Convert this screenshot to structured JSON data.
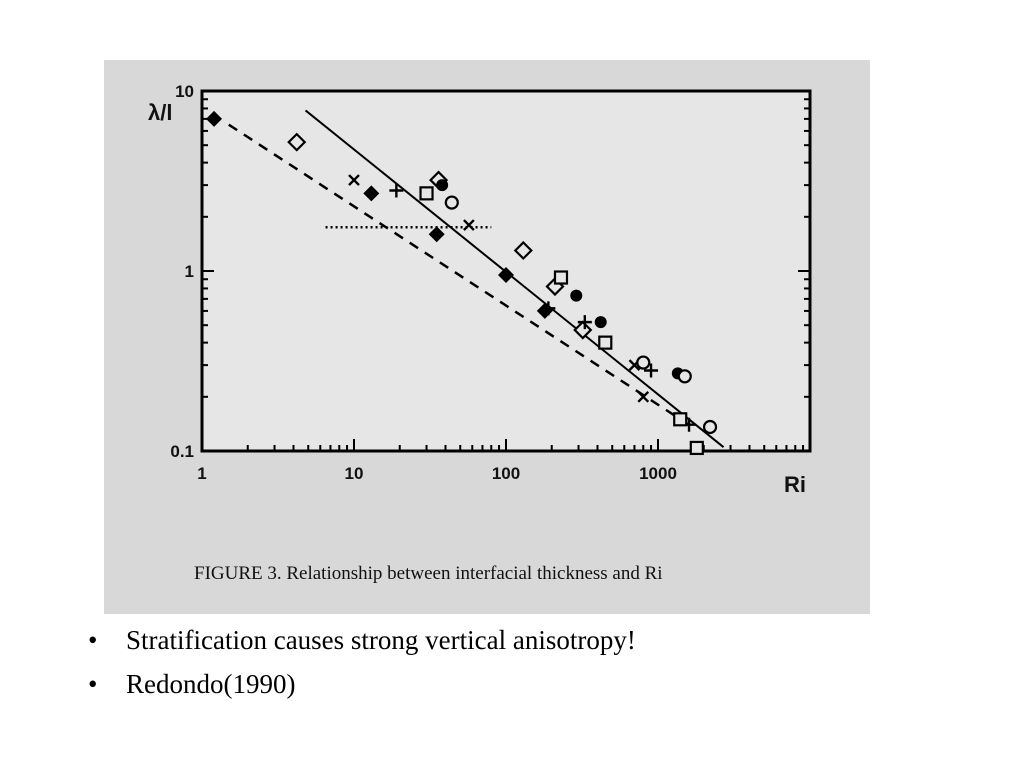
{
  "slide": {
    "bullets": [
      "Stratification causes strong vertical anisotropy!",
      "Redondo(1990)"
    ]
  },
  "chart_data": {
    "type": "scatter",
    "caption": "FIGURE 3. Relationship between interfacial thickness and Ri",
    "xlabel": "Ri",
    "ylabel": "λ/l",
    "x_scale": "log",
    "y_scale": "log",
    "xlim": [
      1,
      10000
    ],
    "ylim": [
      0.1,
      10
    ],
    "x_ticks": [
      "1",
      "10",
      "100",
      "1000"
    ],
    "y_ticks": [
      "10",
      "1",
      "0.1"
    ],
    "series": [
      {
        "marker": "filled-diamond",
        "points": [
          [
            1.2,
            7.0
          ],
          [
            13,
            2.7
          ],
          [
            35,
            1.6
          ],
          [
            100,
            0.95
          ],
          [
            180,
            0.6
          ]
        ]
      },
      {
        "marker": "open-diamond",
        "points": [
          [
            4.2,
            5.2
          ],
          [
            36,
            3.2
          ],
          [
            130,
            1.3
          ],
          [
            210,
            0.82
          ],
          [
            320,
            0.47
          ]
        ]
      },
      {
        "marker": "cross",
        "points": [
          [
            10,
            3.2
          ],
          [
            57,
            1.8
          ],
          [
            700,
            0.3
          ],
          [
            800,
            0.2
          ]
        ]
      },
      {
        "marker": "plus",
        "points": [
          [
            19,
            2.8
          ],
          [
            190,
            0.62
          ],
          [
            330,
            0.52
          ],
          [
            900,
            0.28
          ],
          [
            1600,
            0.14
          ]
        ]
      },
      {
        "marker": "open-square",
        "points": [
          [
            30,
            2.7
          ],
          [
            230,
            0.92
          ],
          [
            450,
            0.4
          ],
          [
            1400,
            0.15
          ],
          [
            1800,
            0.104
          ]
        ]
      },
      {
        "marker": "filled-circle",
        "points": [
          [
            38,
            3.0
          ],
          [
            290,
            0.73
          ],
          [
            420,
            0.52
          ],
          [
            1350,
            0.27
          ]
        ]
      },
      {
        "marker": "open-circle",
        "points": [
          [
            44,
            2.4
          ],
          [
            800,
            0.31
          ],
          [
            1500,
            0.26
          ],
          [
            2200,
            0.136
          ]
        ]
      }
    ],
    "lines": [
      {
        "style": "solid",
        "points": [
          [
            4.8,
            7.8
          ],
          [
            2700,
            0.105
          ]
        ]
      },
      {
        "style": "dashed",
        "points": [
          [
            1.5,
            6.5
          ],
          [
            1700,
            0.135
          ]
        ]
      },
      {
        "style": "dotted",
        "points": [
          [
            6.5,
            1.75
          ],
          [
            80,
            1.75
          ]
        ]
      }
    ]
  }
}
